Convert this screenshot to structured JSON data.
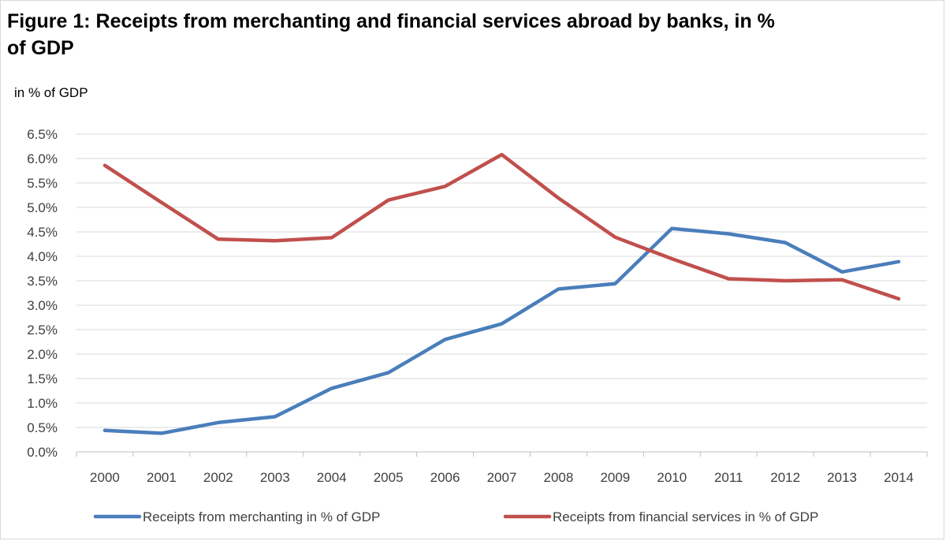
{
  "chart_data": {
    "type": "line",
    "title": "Figure 1: Receipts from merchanting and financial services abroad by banks, in % of GDP",
    "ylabel": "in % of GDP",
    "xlabel": "",
    "x": [
      "2000",
      "2001",
      "2002",
      "2003",
      "2004",
      "2005",
      "2006",
      "2007",
      "2008",
      "2009",
      "2010",
      "2011",
      "2012",
      "2013",
      "2014"
    ],
    "ylim": [
      0,
      6.5
    ],
    "yticks": [
      "0.0%",
      "0.5%",
      "1.0%",
      "1.5%",
      "2.0%",
      "2.5%",
      "3.0%",
      "3.5%",
      "4.0%",
      "4.5%",
      "5.0%",
      "5.5%",
      "6.0%",
      "6.5%"
    ],
    "grid": true,
    "legend": "bottom",
    "series": [
      {
        "name": "Receipts from merchanting in % of GDP",
        "color": "#4a7ebb",
        "values": [
          0.44,
          0.38,
          0.6,
          0.72,
          1.3,
          1.62,
          2.3,
          2.62,
          3.33,
          3.44,
          4.57,
          4.46,
          4.28,
          3.68,
          3.89
        ]
      },
      {
        "name": "Receipts from financial services in % of GDP",
        "color": "#c0504d",
        "values": [
          5.86,
          5.1,
          4.35,
          4.32,
          4.38,
          5.15,
          5.43,
          6.08,
          5.19,
          4.39,
          3.95,
          3.54,
          3.5,
          3.52,
          3.13
        ]
      }
    ]
  }
}
